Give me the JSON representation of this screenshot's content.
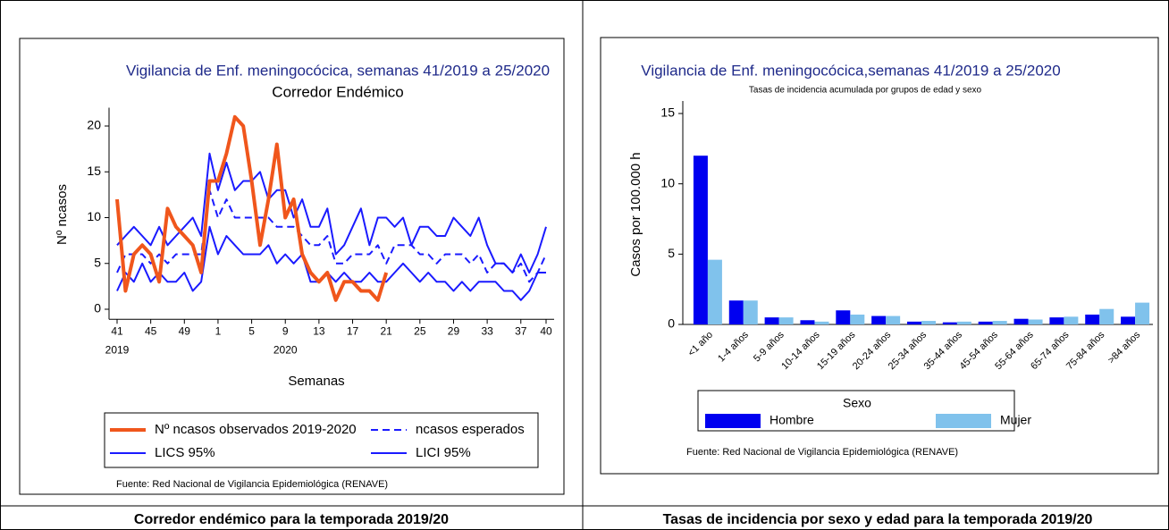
{
  "chart_data": [
    {
      "type": "line",
      "title": "Vigilancia de Enf. meningocócica, semanas 41/2019 a 25/2020",
      "subtitle": "Corredor Endémico",
      "categories": [
        "41",
        null,
        null,
        null,
        "45",
        null,
        null,
        null,
        "49",
        null,
        null,
        null,
        "1",
        null,
        null,
        null,
        "5",
        null,
        null,
        null,
        "9",
        null,
        null,
        null,
        "13",
        null,
        null,
        null,
        "17",
        null,
        null,
        null,
        "21",
        null,
        null,
        null,
        "25",
        null,
        null,
        null,
        "29",
        null,
        null,
        null,
        "33",
        null,
        null,
        null,
        "37",
        null,
        null,
        "40"
      ],
      "category_years": [
        "2019",
        null,
        null,
        null,
        null,
        null,
        null,
        null,
        null,
        null,
        null,
        null,
        null,
        null,
        null,
        null,
        null,
        null,
        null,
        null,
        "2020",
        null,
        null,
        null,
        null,
        null,
        null,
        null,
        null,
        null,
        null,
        null,
        null,
        null,
        null,
        null,
        null,
        null,
        null,
        null,
        null,
        null,
        null,
        null,
        null,
        null,
        null,
        null,
        null,
        null,
        null,
        null
      ],
      "x_label": "Semanas",
      "y_label": "Nº ncasos",
      "ylim": [
        -1,
        22
      ],
      "yticks": [
        0,
        5,
        10,
        15,
        20
      ],
      "series": [
        {
          "name": "Nº ncasos observados 2019-2020",
          "color": "#f0561c",
          "dash": false,
          "width": 4,
          "values": [
            12,
            2,
            6,
            7,
            6,
            3,
            11,
            9,
            8,
            7,
            4,
            14,
            14,
            17,
            21,
            20,
            14,
            7,
            12,
            18,
            10,
            12,
            6,
            4,
            3,
            4,
            1,
            3,
            3,
            2,
            2,
            1,
            4,
            null,
            null,
            null,
            null,
            null,
            null,
            null,
            null,
            null,
            null,
            null,
            null,
            null,
            null,
            null,
            null,
            null,
            null,
            null
          ]
        },
        {
          "name": "ncasos esperados",
          "color": "#1a1aff",
          "dash": true,
          "width": 2,
          "values": [
            4,
            6,
            6,
            6,
            5,
            6,
            5,
            6,
            6,
            6,
            6,
            13,
            10,
            12,
            10,
            10,
            10,
            10,
            10,
            9,
            9,
            9,
            8,
            7,
            7,
            8,
            5,
            5,
            6,
            6,
            6,
            7,
            5,
            7,
            7,
            7,
            6,
            6,
            5,
            6,
            6,
            6,
            5,
            6,
            4,
            5,
            5,
            4,
            5,
            3,
            4,
            6
          ]
        },
        {
          "name": "LICS 95%",
          "color": "#1a1aff",
          "dash": false,
          "width": 2,
          "values": [
            7,
            8,
            9,
            8,
            7,
            9,
            7,
            8,
            9,
            10,
            8,
            17,
            13,
            16,
            13,
            14,
            14,
            15,
            12,
            13,
            13,
            10,
            12,
            9,
            9,
            11,
            6,
            7,
            9,
            11,
            7,
            10,
            10,
            9,
            10,
            7,
            9,
            9,
            8,
            8,
            10,
            9,
            8,
            10,
            7,
            5,
            5,
            4,
            6,
            4,
            6,
            9
          ]
        },
        {
          "name": "LICI 95%",
          "color": "#1a1aff",
          "dash": false,
          "width": 2,
          "values": [
            2,
            4,
            3,
            5,
            3,
            4,
            3,
            3,
            4,
            2,
            3,
            9,
            6,
            8,
            7,
            6,
            6,
            6,
            7,
            5,
            6,
            5,
            6,
            3,
            3,
            4,
            3,
            4,
            3,
            3,
            4,
            3,
            3,
            4,
            5,
            4,
            3,
            4,
            3,
            3,
            2,
            3,
            2,
            3,
            3,
            3,
            2,
            2,
            1,
            2,
            4,
            4
          ]
        }
      ],
      "source": "Fuente: Red Nacional de Vigilancia Epidemiológica (RENAVE)"
    },
    {
      "type": "bar",
      "title": "Vigilancia de Enf. meningocócica,semanas 41/2019 a 25/2020",
      "subtitle": "Tasas de incidencia acumulada por grupos de edad y sexo",
      "categories": [
        "<1 año",
        "1-4 años",
        "5-9 años",
        "10-14 años",
        "15-19 años",
        "20-24 años",
        "25-34 años",
        "35-44 años",
        "45-54 años",
        "55-64 años",
        "65-74 años",
        "75-84 años",
        ">84 años"
      ],
      "y_label": "Casos por 100.000 h",
      "ylim": [
        0,
        16.5
      ],
      "yticks": [
        0,
        5,
        10,
        15
      ],
      "legend_title": "Sexo",
      "series": [
        {
          "name": "Hombre",
          "color": "#0000f0",
          "values": [
            12,
            1.7,
            0.5,
            0.3,
            1.0,
            0.6,
            0.2,
            0.15,
            0.2,
            0.4,
            0.5,
            0.7,
            0.55
          ]
        },
        {
          "name": "Mujer",
          "color": "#80c2ec",
          "values": [
            4.6,
            1.7,
            0.5,
            0.2,
            0.7,
            0.6,
            0.25,
            0.2,
            0.25,
            0.35,
            0.55,
            1.1,
            1.55
          ]
        }
      ],
      "source": "Fuente: Red Nacional de Vigilancia Epidemiológica (RENAVE)"
    }
  ],
  "captions": [
    "Corredor endémico para la temporada 2019/20",
    "Tasas de incidencia por sexo y edad para la temporada 2019/20"
  ]
}
